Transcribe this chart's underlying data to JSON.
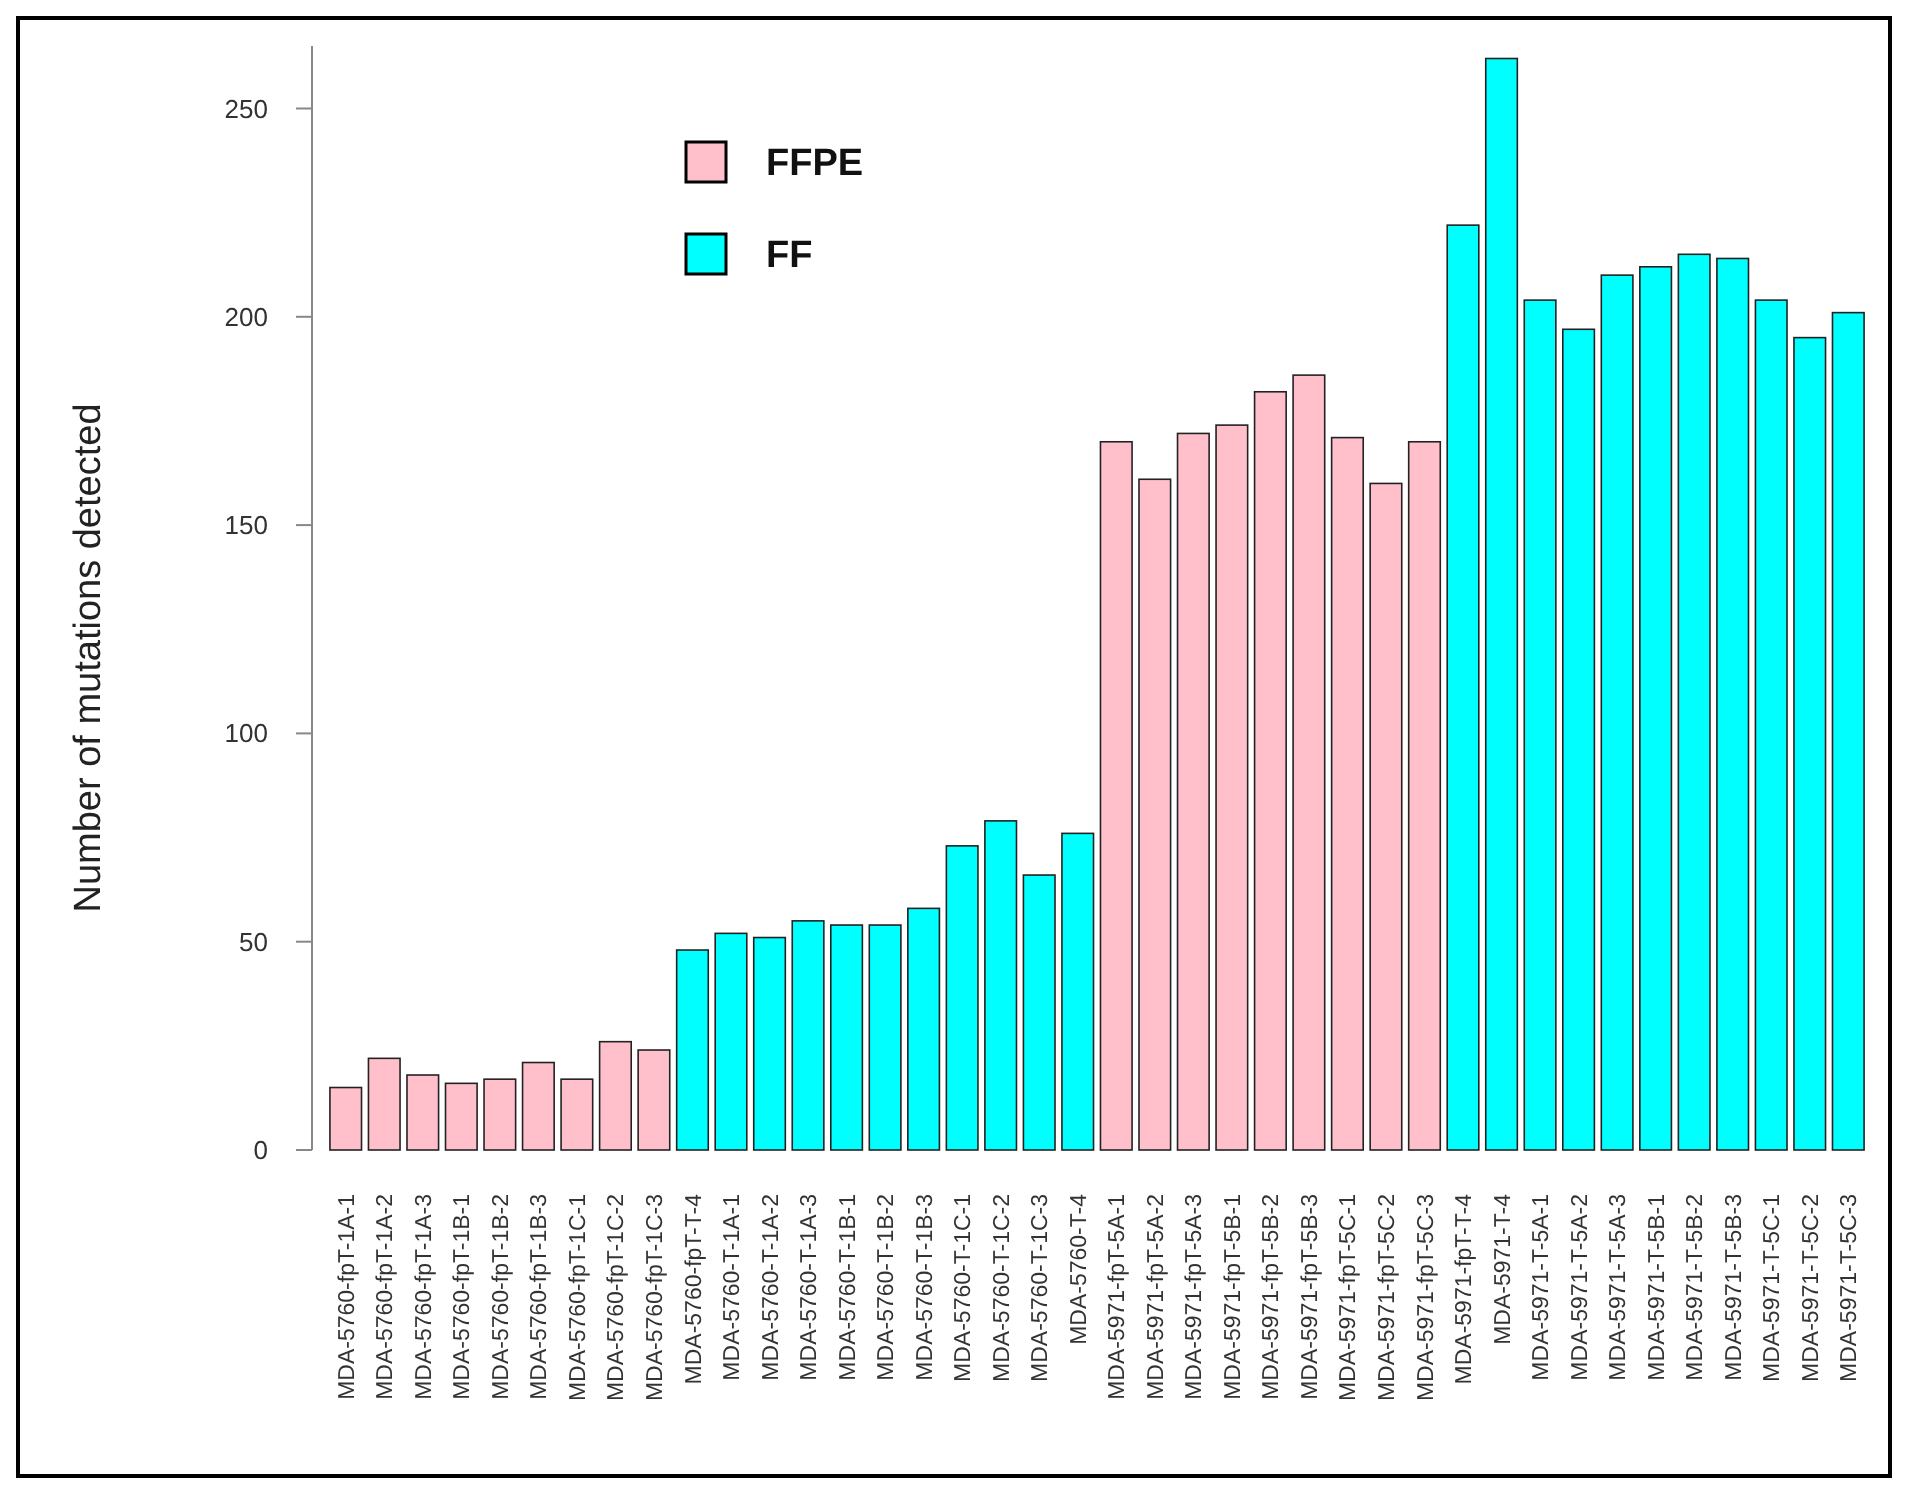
{
  "chart_data": {
    "type": "bar",
    "ylabel": "Number of mutations detected",
    "categories": [
      "MDA-5760-fpT-1A-1",
      "MDA-5760-fpT-1A-2",
      "MDA-5760-fpT-1A-3",
      "MDA-5760-fpT-1B-1",
      "MDA-5760-fpT-1B-2",
      "MDA-5760-fpT-1B-3",
      "MDA-5760-fpT-1C-1",
      "MDA-5760-fpT-1C-2",
      "MDA-5760-fpT-1C-3",
      "MDA-5760-fpT-T-4",
      "MDA-5760-T-1A-1",
      "MDA-5760-T-1A-2",
      "MDA-5760-T-1A-3",
      "MDA-5760-T-1B-1",
      "MDA-5760-T-1B-2",
      "MDA-5760-T-1B-3",
      "MDA-5760-T-1C-1",
      "MDA-5760-T-1C-2",
      "MDA-5760-T-1C-3",
      "MDA-5760-T-4",
      "MDA-5971-fpT-5A-1",
      "MDA-5971-fpT-5A-2",
      "MDA-5971-fpT-5A-3",
      "MDA-5971-fpT-5B-1",
      "MDA-5971-fpT-5B-2",
      "MDA-5971-fpT-5B-3",
      "MDA-5971-fpT-5C-1",
      "MDA-5971-fpT-5C-2",
      "MDA-5971-fpT-5C-3",
      "MDA-5971-fpT-T-4",
      "MDA-5971-T-4",
      "MDA-5971-T-5A-1",
      "MDA-5971-T-5A-2",
      "MDA-5971-T-5A-3",
      "MDA-5971-T-5B-1",
      "MDA-5971-T-5B-2",
      "MDA-5971-T-5B-3",
      "MDA-5971-T-5C-1",
      "MDA-5971-T-5C-2",
      "MDA-5971-T-5C-3"
    ],
    "series": [
      {
        "name": "FFPE",
        "color": "#ffc0cb",
        "values": [
          15,
          22,
          18,
          16,
          17,
          21,
          17,
          26,
          24,
          null,
          null,
          null,
          null,
          null,
          null,
          null,
          null,
          null,
          null,
          null,
          170,
          161,
          172,
          174,
          182,
          186,
          171,
          160,
          170,
          null,
          null,
          null,
          null,
          null,
          null,
          null,
          null,
          null,
          null,
          null
        ]
      },
      {
        "name": "FF",
        "color": "#00ffff",
        "values": [
          null,
          null,
          null,
          null,
          null,
          null,
          null,
          null,
          null,
          48,
          52,
          51,
          55,
          54,
          54,
          58,
          73,
          79,
          66,
          76,
          null,
          null,
          null,
          null,
          null,
          null,
          null,
          null,
          null,
          222,
          262,
          204,
          197,
          210,
          212,
          215,
          214,
          204,
          195,
          201
        ]
      }
    ],
    "ylim": [
      0,
      265
    ],
    "yticks": [
      0,
      50,
      100,
      150,
      200,
      250
    ],
    "grid": false,
    "legend": "top left"
  }
}
